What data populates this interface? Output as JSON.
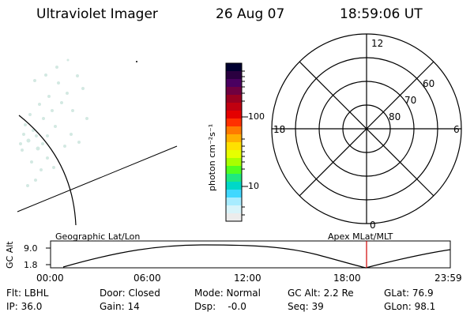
{
  "header": {
    "title": "Ultraviolet Imager",
    "date": "26 Aug 07",
    "time": "18:59:06 UT"
  },
  "colorbar": {
    "unit_label": "photon cm⁻²s⁻¹",
    "tick_labels": [
      "100",
      "10"
    ],
    "colors": [
      "#000030",
      "#2a0040",
      "#4a0060",
      "#700040",
      "#9a0020",
      "#c00010",
      "#e40000",
      "#ff3000",
      "#ff7a00",
      "#ffb000",
      "#ffe000",
      "#e6ff00",
      "#a8ff00",
      "#50ff20",
      "#20e880",
      "#00d8c8",
      "#40d8ff",
      "#a8ecff",
      "#d8f4fa",
      "#ececec"
    ]
  },
  "polar": {
    "mlt_labels": {
      "top": "12",
      "left": "18",
      "right": "6",
      "bottom": "0"
    },
    "lat_labels": [
      "60",
      "70",
      "80"
    ]
  },
  "timeline": {
    "y_axis_label": "GC Alt",
    "y_ticks": [
      "9.0",
      "1.8"
    ],
    "left_title": "Geographic Lat/Lon",
    "right_title": "Apex MLat/MLT",
    "x_ticks": [
      "00:00",
      "06:00",
      "12:00",
      "18:00",
      "23:59"
    ]
  },
  "info": {
    "col1": [
      "Flt: LBHL",
      "IP: 36.0"
    ],
    "col2": [
      "Door: Closed",
      "Gain: 14"
    ],
    "col3": [
      "Mode: Normal",
      "Dsp:    -0.0"
    ],
    "col4": [
      "GC Alt: 2.2 Re",
      "Seq: 39"
    ],
    "col5": [
      "GLat: 76.9",
      "GLon: 98.1"
    ]
  }
}
